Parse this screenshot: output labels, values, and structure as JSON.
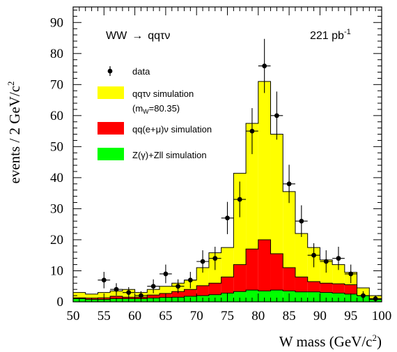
{
  "chart_data": {
    "type": "bar",
    "subtype": "stacked-histogram-with-data-points",
    "xlabel": "W mass (GeV/c",
    "xlabel_sup": "2",
    "xlabel_end": ")",
    "ylabel": "events / 2 GeV/c",
    "ylabel_sup": "2",
    "xlim": [
      50,
      100
    ],
    "ylim": [
      0,
      95
    ],
    "x_ticks": [
      50,
      55,
      60,
      65,
      70,
      75,
      80,
      85,
      90,
      95,
      100
    ],
    "y_ticks": [
      0,
      10,
      20,
      30,
      40,
      50,
      60,
      70,
      80,
      90
    ],
    "bin_width": 2,
    "bin_edges": [
      50,
      52,
      54,
      56,
      58,
      60,
      62,
      64,
      66,
      68,
      70,
      72,
      74,
      76,
      78,
      80,
      82,
      84,
      86,
      88,
      90,
      92,
      94,
      96,
      98,
      100
    ],
    "annotations": {
      "process_prefix": "WW",
      "process_arrow": "→",
      "process_suffix": "qqτν",
      "luminosity": "221 pb",
      "luminosity_sup": "-1"
    },
    "legend": {
      "position": "top-left",
      "entries": [
        {
          "label": "data",
          "marker": "point-with-errorbar",
          "color": "#000000"
        },
        {
          "label": "qqτν simulation",
          "label2": "(m",
          "label2_sub": "W",
          "label2_end": "=80.35)",
          "color": "#ffff00"
        },
        {
          "label": "qq(e+μ)ν simulation",
          "color": "#ff0000"
        },
        {
          "label": "Z(γ)+Zll simulation",
          "color": "#00ff00"
        }
      ]
    },
    "series": [
      {
        "name": "Z(γ)+Zll simulation",
        "color": "#00ff00",
        "values": [
          1,
          0.8,
          0.8,
          1,
          1,
          1,
          1.2,
          1.4,
          1.5,
          1.8,
          2,
          2.3,
          2.8,
          3.3,
          3.8,
          3.5,
          3.8,
          3.5,
          3.2,
          3.2,
          3,
          2.8,
          2.5,
          2,
          0.8
        ]
      },
      {
        "name": "qq(e+μ)ν simulation",
        "color": "#ff0000",
        "values": [
          0.3,
          0.4,
          0.5,
          0.8,
          0.5,
          0.5,
          1,
          1.3,
          1.8,
          2.2,
          3.2,
          3.7,
          5.2,
          8.7,
          13.2,
          16.5,
          11.7,
          7.5,
          4.8,
          3.3,
          3,
          3,
          3,
          0,
          0
        ]
      },
      {
        "name": "qqτν simulation",
        "color": "#ffff00",
        "values": [
          1.7,
          1.3,
          1.7,
          1.7,
          2.5,
          1.5,
          1.8,
          2.3,
          2.7,
          3,
          5.8,
          9.8,
          9.5,
          29.4,
          40.5,
          51,
          38.5,
          24.5,
          14,
          11,
          7.5,
          6.2,
          4,
          2.5,
          1.2
        ]
      }
    ],
    "data_points": {
      "name": "data",
      "x": [
        55,
        57,
        59,
        61,
        63,
        65,
        67,
        69,
        71,
        73,
        75,
        77,
        79,
        81,
        83,
        85,
        87,
        89,
        91,
        93,
        95,
        97,
        99
      ],
      "y": [
        7,
        4,
        3,
        2,
        5,
        9,
        5,
        7,
        13,
        14,
        27,
        33,
        55,
        76,
        60,
        38,
        26,
        15,
        13,
        14,
        9,
        2,
        1
      ]
    }
  }
}
